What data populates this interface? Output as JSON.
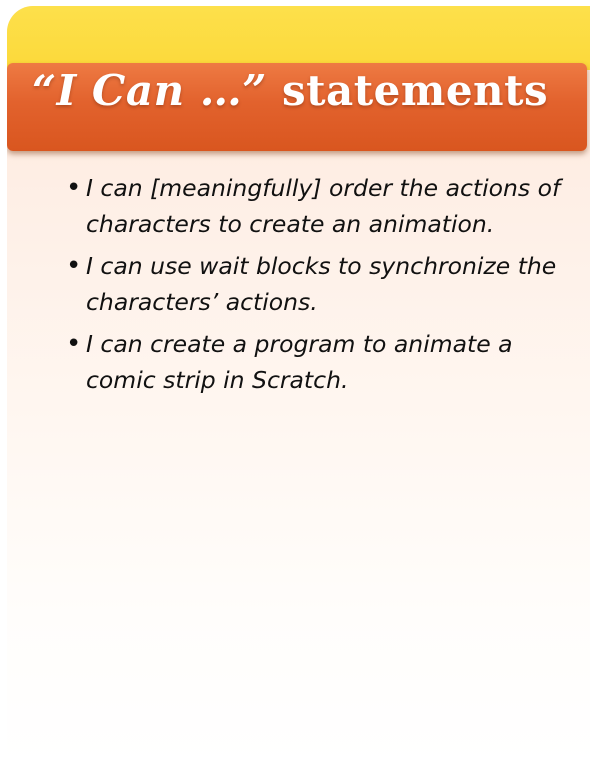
{
  "header": {
    "title_quote": "“I Can …”",
    "title_rest": " statements"
  },
  "bullets": [
    "I can [meaningfully] order the actions of characters to create an animation.",
    "I can use wait blocks to synchronize the characters’ actions.",
    "I can create a program to animate a comic strip in Scratch."
  ],
  "bullet_glyph": "•",
  "colors": {
    "band_yellow": "#fcd93a",
    "header_orange": "#e2622d",
    "edge_green": "#4f8e3a",
    "body_peach": "#fde6d6"
  }
}
